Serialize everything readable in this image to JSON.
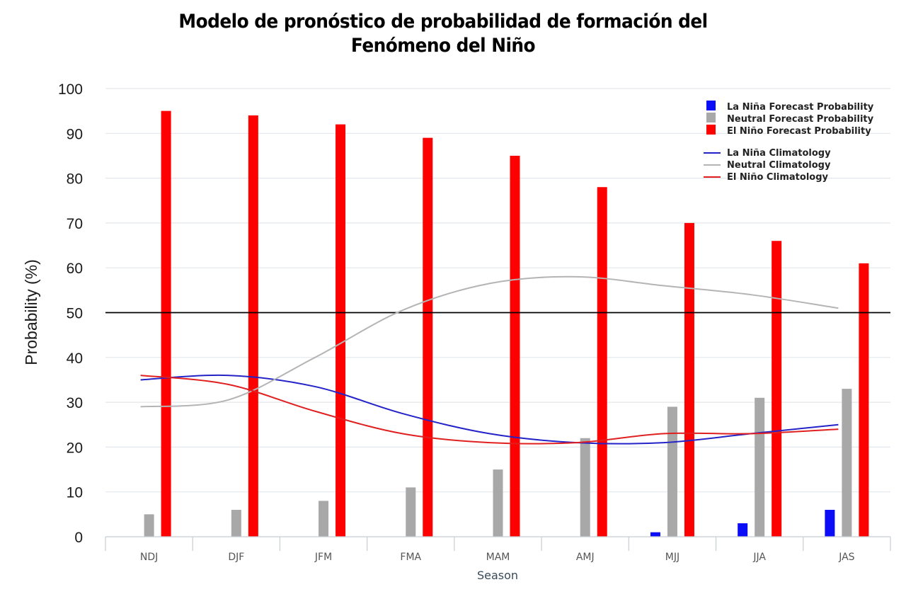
{
  "title_line1": "Modelo de pronóstico de probabilidad de formación del",
  "title_line2": "Fenómeno del Niño",
  "chart_data": {
    "type": "bar",
    "xlabel": "Season",
    "ylabel": "Probability (%)",
    "ylim": [
      0,
      100
    ],
    "yticks": [
      0,
      10,
      20,
      30,
      40,
      50,
      60,
      70,
      80,
      90,
      100
    ],
    "reference_line": 50,
    "categories": [
      "NDJ",
      "DJF",
      "JFM",
      "FMA",
      "MAM",
      "AMJ",
      "MJJ",
      "JJA",
      "JAS"
    ],
    "series": [
      {
        "name": "La Niña Forecast Probability",
        "kind": "bar",
        "color": "#0a0df5",
        "values": [
          0,
          0,
          0,
          0,
          0,
          0,
          1,
          3,
          6
        ]
      },
      {
        "name": "Neutral Forecast Probability",
        "kind": "bar",
        "color": "#a8a8a8",
        "values": [
          5,
          6,
          8,
          11,
          15,
          22,
          29,
          31,
          33
        ]
      },
      {
        "name": "El Niño Forecast Probability",
        "kind": "bar",
        "color": "#ff0000",
        "values": [
          95,
          94,
          92,
          89,
          85,
          78,
          70,
          66,
          61
        ]
      }
    ],
    "lines": [
      {
        "name": "La Niña Climatology",
        "kind": "line",
        "color": "#2323c8",
        "values": [
          35,
          36,
          33.5,
          27.5,
          23,
          21,
          21,
          23,
          25
        ]
      },
      {
        "name": "Neutral Climatology",
        "kind": "line",
        "color": "#b4b4b4",
        "values": [
          29,
          30.5,
          40,
          50.5,
          56.5,
          58,
          56,
          54,
          51
        ]
      },
      {
        "name": "El Niño Climatology",
        "kind": "line",
        "color": "#e02020",
        "values": [
          36,
          34,
          28,
          23,
          21,
          21,
          23,
          23,
          24
        ]
      }
    ],
    "legend_position": "top-right",
    "grid": true
  }
}
